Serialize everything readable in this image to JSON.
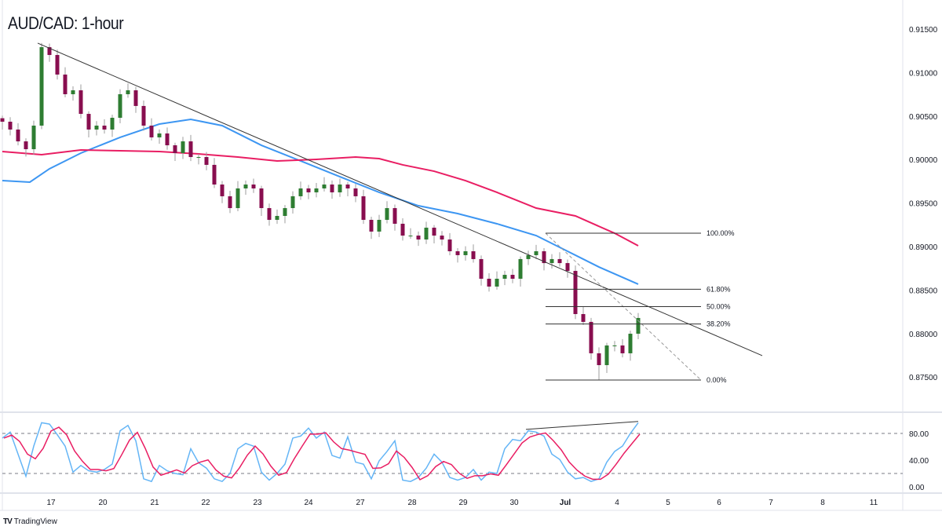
{
  "header": {
    "title": "AUD/CAD: 1-hour"
  },
  "footer": {
    "brand": "TradingView",
    "logo_text": "TV"
  },
  "colors": {
    "bull": "#2e7d32",
    "bear": "#880e4f",
    "wick": "#9e9e9e",
    "ma_fast": "#3d96f2",
    "ma_slow": "#e91e63",
    "stoch_k": "#64b5f6",
    "stoch_d": "#e91e63",
    "trendline": "#333333",
    "grid": "#e0e3eb"
  },
  "chart_data": {
    "type": "candlestick",
    "title": "AUD/CAD: 1-hour",
    "x_tick_labels": [
      "17",
      "20",
      "21",
      "22",
      "23",
      "24",
      "27",
      "28",
      "29",
      "30",
      "Jul",
      "4",
      "5",
      "6",
      "7",
      "8",
      "11"
    ],
    "y_tick_labels": [
      "0.91500",
      "0.91000",
      "0.90500",
      "0.90000",
      "0.89500",
      "0.89000",
      "0.88500",
      "0.88000",
      "0.87500"
    ],
    "ylim": [
      0.8715,
      0.9185
    ],
    "grid": false,
    "close": [
      0.90435,
      0.90345,
      0.90209,
      0.90119,
      0.9039,
      0.91292,
      0.91202,
      0.90977,
      0.90751,
      0.90796,
      0.90525,
      0.90345,
      0.9039,
      0.90345,
      0.9048,
      0.90751,
      0.90796,
      0.90616,
      0.9039,
      0.90255,
      0.903,
      0.90164,
      0.90074,
      0.90209,
      0.90029,
      0.90029,
      0.89939,
      0.89713,
      0.89578,
      0.89442,
      0.89668,
      0.89713,
      0.89668,
      0.89442,
      0.89307,
      0.89352,
      0.89442,
      0.89578,
      0.89668,
      0.89623,
      0.89668,
      0.89713,
      0.89623,
      0.89713,
      0.89668,
      0.89578,
      0.89307,
      0.89172,
      0.89307,
      0.89442,
      0.89262,
      0.89126,
      0.89126,
      0.89081,
      0.89217,
      0.89126,
      0.89081,
      0.88946,
      0.88901,
      0.88946,
      0.88856,
      0.8863,
      0.8854,
      0.8863,
      0.88675,
      0.8863,
      0.88856,
      0.88901,
      0.88946,
      0.8881,
      0.88856,
      0.8881,
      0.8872,
      0.88224,
      0.88134,
      0.87773,
      0.87637,
      0.87863,
      0.87863,
      0.87773,
      0.87998,
      0.88179
    ],
    "high": 0.9134,
    "low": 0.87466,
    "moving_averages": [
      {
        "color_key": "ma_fast",
        "values": [
          [
            0,
            0.89758
          ],
          [
            3.5,
            0.8974
          ],
          [
            6,
            0.89894
          ],
          [
            10,
            0.90074
          ],
          [
            15,
            0.90255
          ],
          [
            20,
            0.90408
          ],
          [
            24,
            0.90462
          ],
          [
            28,
            0.9039
          ],
          [
            33,
            0.90164
          ],
          [
            38,
            0.89984
          ],
          [
            43,
            0.89803
          ],
          [
            48,
            0.89623
          ],
          [
            53,
            0.89469
          ],
          [
            58,
            0.89379
          ],
          [
            63,
            0.89262
          ],
          [
            68,
            0.89126
          ],
          [
            72,
            0.88946
          ],
          [
            76,
            0.88765
          ],
          [
            81,
            0.88567
          ]
        ]
      },
      {
        "color_key": "ma_slow",
        "values": [
          [
            0,
            0.90092
          ],
          [
            5,
            0.90056
          ],
          [
            10,
            0.9011
          ],
          [
            15,
            0.90101
          ],
          [
            20,
            0.90092
          ],
          [
            25,
            0.90065
          ],
          [
            30,
            0.90029
          ],
          [
            35,
            0.89984
          ],
          [
            40,
            0.90002
          ],
          [
            45,
            0.90029
          ],
          [
            48,
            0.90011
          ],
          [
            51,
            0.89939
          ],
          [
            55,
            0.89866
          ],
          [
            59,
            0.89758
          ],
          [
            63,
            0.89623
          ],
          [
            68,
            0.89442
          ],
          [
            73,
            0.89352
          ],
          [
            78,
            0.89153
          ],
          [
            81,
            0.89009
          ]
        ]
      }
    ],
    "trendline": [
      [
        4.5,
        0.91338
      ],
      [
        96.8,
        0.87746
      ]
    ],
    "fibonacci": {
      "from": [
        69.2,
        0.89153
      ],
      "to": [
        89,
        0.87466
      ],
      "levels": [
        {
          "label": "100.00%",
          "price": 0.89153
        },
        {
          "label": "61.80%",
          "price": 0.88509
        },
        {
          "label": "50.00%",
          "price": 0.8831
        },
        {
          "label": "38.20%",
          "price": 0.8811
        },
        {
          "label": "0.00%",
          "price": 0.87466
        }
      ]
    },
    "stochastic": {
      "y_tick_labels": [
        "80.00",
        "40.00",
        "0.00"
      ],
      "overbought": 80,
      "oversold": 20,
      "k": [
        73,
        82,
        49,
        16,
        61,
        96,
        94,
        78,
        61,
        22,
        32,
        24,
        22,
        26,
        34,
        84,
        92,
        69,
        12,
        8,
        32,
        24,
        20,
        18,
        57,
        36,
        28,
        12,
        8,
        20,
        57,
        65,
        61,
        22,
        10,
        20,
        34,
        73,
        76,
        88,
        73,
        82,
        47,
        43,
        75,
        37,
        34,
        12,
        39,
        53,
        69,
        10,
        8,
        14,
        28,
        49,
        37,
        14,
        10,
        14,
        26,
        10,
        22,
        20,
        57,
        71,
        69,
        84,
        82,
        76,
        49,
        41,
        22,
        12,
        14,
        8,
        12,
        37,
        53,
        61,
        80,
        96
      ],
      "divergence_line": [
        [
          66.7,
          86
        ],
        [
          81,
          98
        ]
      ]
    }
  }
}
